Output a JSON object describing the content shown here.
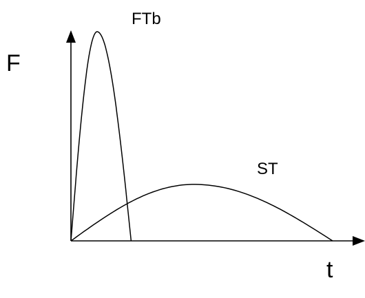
{
  "chart_data": {
    "type": "line",
    "title": "",
    "xlabel": "t",
    "ylabel": "F",
    "grid": false,
    "legend": "none",
    "axis_color": "#000000",
    "line_color": "#000000",
    "series": [
      {
        "name": "FTb",
        "label": "FTb",
        "shape": "peak",
        "start": 0.0,
        "end": 0.23,
        "peak_t": 0.1,
        "peak_value": 1.0
      },
      {
        "name": "ST",
        "label": "ST",
        "shape": "peak",
        "start": 0.0,
        "end": 1.0,
        "peak_t": 0.47,
        "peak_value": 0.27
      }
    ]
  }
}
